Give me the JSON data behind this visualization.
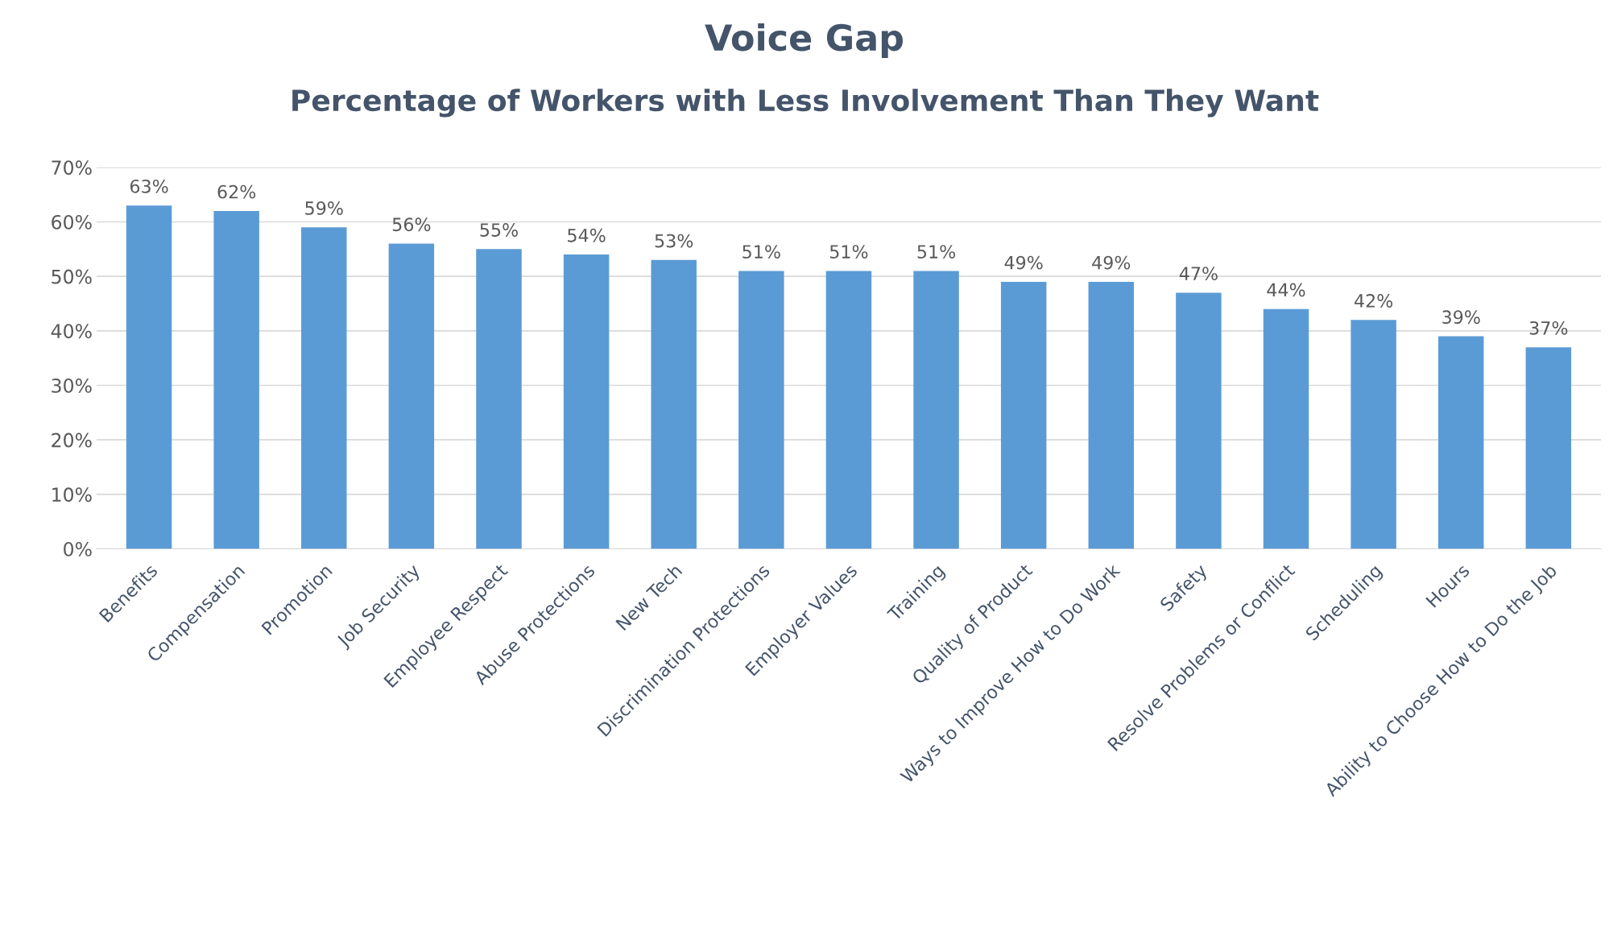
{
  "chart_data": {
    "type": "bar",
    "title": "Voice Gap",
    "subtitle": "Percentage of Workers with Less Involvement Than They Want",
    "categories": [
      "Benefits",
      "Compensation",
      "Promotion",
      "Job Security",
      "Employee Respect",
      "Abuse Protections",
      "New Tech",
      "Discrimination Protections",
      "Employer Values",
      "Training",
      "Quality of Product",
      "Ways to Improve How to Do Work",
      "Safety",
      "Resolve Problems or Conflict",
      "Scheduling",
      "Hours",
      "Ability to Choose How to Do the Job"
    ],
    "values": [
      63,
      62,
      59,
      56,
      55,
      54,
      53,
      51,
      51,
      51,
      49,
      49,
      47,
      44,
      42,
      39,
      37
    ],
    "value_labels": [
      "63%",
      "62%",
      "59%",
      "56%",
      "55%",
      "54%",
      "53%",
      "51%",
      "51%",
      "51%",
      "49%",
      "49%",
      "47%",
      "44%",
      "42%",
      "39%",
      "37%"
    ],
    "color": "#5b9bd5",
    "ylim": [
      0,
      70
    ],
    "yticks": [
      {
        "value": 0,
        "label": "0%"
      },
      {
        "value": 10,
        "label": "10%"
      },
      {
        "value": 20,
        "label": "20%"
      },
      {
        "value": 30,
        "label": "30%"
      },
      {
        "value": 40,
        "label": "40%"
      },
      {
        "value": 50,
        "label": "50%"
      },
      {
        "value": 60,
        "label": "60%"
      },
      {
        "value": 70,
        "label": "70%"
      }
    ],
    "grid": "y"
  }
}
